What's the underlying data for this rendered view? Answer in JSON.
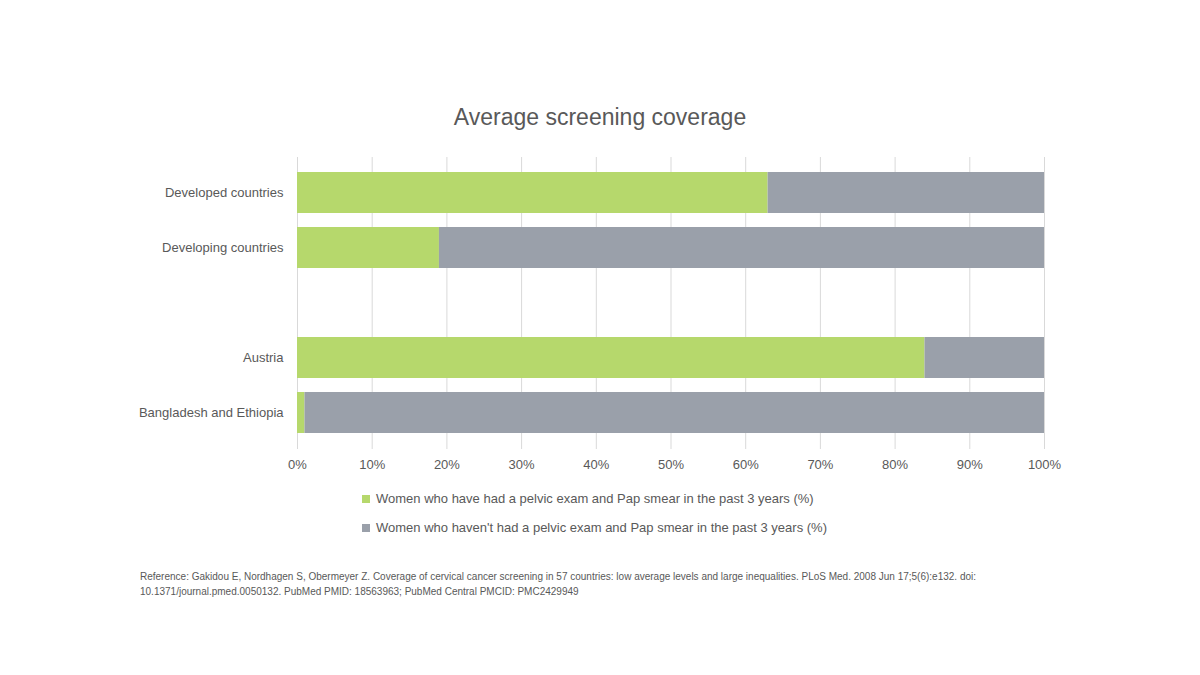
{
  "chart_data": {
    "type": "bar",
    "title": "Average screening coverage",
    "orientation": "horizontal",
    "stacked": true,
    "grid": true,
    "legend": "bottom",
    "categories": [
      "Developed countries",
      "Developing countries",
      null,
      "Austria",
      "Bangladesh and Ethiopia"
    ],
    "series": [
      {
        "name": "Women who have had a pelvic exam and Pap smear in the past 3 years (%)",
        "color": "#b6d86c",
        "values": [
          63,
          19,
          null,
          84,
          1
        ]
      },
      {
        "name": "Women who haven't had a pelvic exam and Pap smear in the past 3 years (%)",
        "color": "#9aa0aa",
        "values": [
          37,
          81,
          null,
          16,
          99
        ]
      }
    ],
    "xlim": [
      0,
      100
    ],
    "xticks": [
      {
        "value": 0,
        "label": "0%"
      },
      {
        "value": 10,
        "label": "10%"
      },
      {
        "value": 20,
        "label": "20%"
      },
      {
        "value": 30,
        "label": "30%"
      },
      {
        "value": 40,
        "label": "40%"
      },
      {
        "value": 50,
        "label": "50%"
      },
      {
        "value": 60,
        "label": "60%"
      },
      {
        "value": 70,
        "label": "70%"
      },
      {
        "value": 80,
        "label": "80%"
      },
      {
        "value": 90,
        "label": "90%"
      },
      {
        "value": 100,
        "label": "100%"
      }
    ],
    "caption": "Reference:  Gakidou E, Nordhagen S, Obermeyer  Z. Coverage of cervical cancer screening in 57 countries: low average levels and large inequalities. PLoS Med. 2008 Jun 17;5(6):e132. doi: 10.1371/journal.pmed.0050132. PubMed PMID: 18563963; PubMed Central PMCID: PMC2429949"
  }
}
